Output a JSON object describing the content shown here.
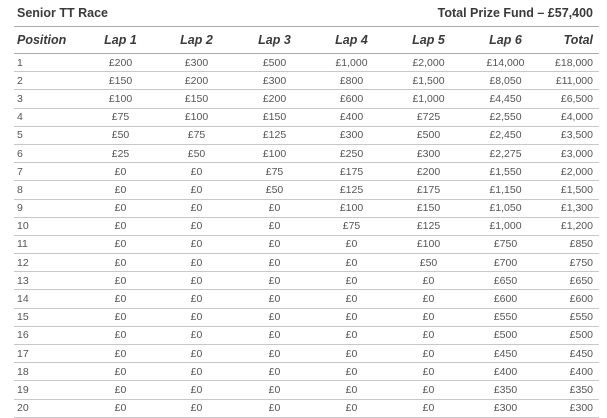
{
  "header": {
    "title": "Senior TT Race",
    "prize_fund": "Total Prize Fund – £57,400"
  },
  "table": {
    "columns": [
      "Position",
      "Lap 1",
      "Lap 2",
      "Lap 3",
      "Lap 4",
      "Lap 5",
      "Lap 6",
      "Total"
    ],
    "rows": [
      [
        "1",
        "£200",
        "£300",
        "£500",
        "£1,000",
        "£2,000",
        "£14,000",
        "£18,000"
      ],
      [
        "2",
        "£150",
        "£200",
        "£300",
        "£800",
        "£1,500",
        "£8,050",
        "£11,000"
      ],
      [
        "3",
        "£100",
        "£150",
        "£200",
        "£600",
        "£1,000",
        "£4,450",
        "£6,500"
      ],
      [
        "4",
        "£75",
        "£100",
        "£150",
        "£400",
        "£725",
        "£2,550",
        "£4,000"
      ],
      [
        "5",
        "£50",
        "£75",
        "£125",
        "£300",
        "£500",
        "£2,450",
        "£3,500"
      ],
      [
        "6",
        "£25",
        "£50",
        "£100",
        "£250",
        "£300",
        "£2,275",
        "£3,000"
      ],
      [
        "7",
        "£0",
        "£0",
        "£75",
        "£175",
        "£200",
        "£1,550",
        "£2,000"
      ],
      [
        "8",
        "£0",
        "£0",
        "£50",
        "£125",
        "£175",
        "£1,150",
        "£1,500"
      ],
      [
        "9",
        "£0",
        "£0",
        "£0",
        "£100",
        "£150",
        "£1,050",
        "£1,300"
      ],
      [
        "10",
        "£0",
        "£0",
        "£0",
        "£75",
        "£125",
        "£1,000",
        "£1,200"
      ],
      [
        "11",
        "£0",
        "£0",
        "£0",
        "£0",
        "£100",
        "£750",
        "£850"
      ],
      [
        "12",
        "£0",
        "£0",
        "£0",
        "£0",
        "£50",
        "£700",
        "£750"
      ],
      [
        "13",
        "£0",
        "£0",
        "£0",
        "£0",
        "£0",
        "£650",
        "£650"
      ],
      [
        "14",
        "£0",
        "£0",
        "£0",
        "£0",
        "£0",
        "£600",
        "£600"
      ],
      [
        "15",
        "£0",
        "£0",
        "£0",
        "£0",
        "£0",
        "£550",
        "£550"
      ],
      [
        "16",
        "£0",
        "£0",
        "£0",
        "£0",
        "£0",
        "£500",
        "£500"
      ],
      [
        "17",
        "£0",
        "£0",
        "£0",
        "£0",
        "£0",
        "£450",
        "£450"
      ],
      [
        "18",
        "£0",
        "£0",
        "£0",
        "£0",
        "£0",
        "£400",
        "£400"
      ],
      [
        "19",
        "£0",
        "£0",
        "£0",
        "£0",
        "£0",
        "£350",
        "£350"
      ],
      [
        "20",
        "£0",
        "£0",
        "£0",
        "£0",
        "£0",
        "£300",
        "£300"
      ]
    ]
  }
}
